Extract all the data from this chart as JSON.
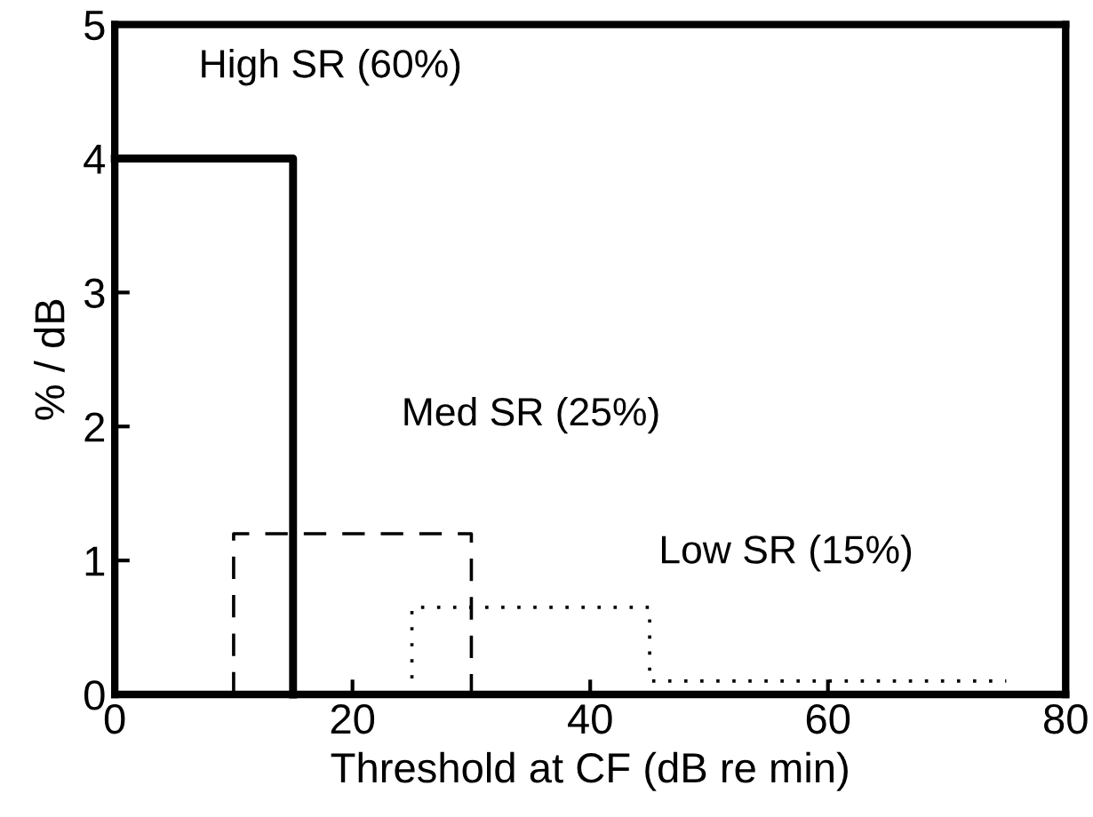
{
  "chart_data": {
    "type": "line",
    "xlabel": "Threshold at CF (dB re min)",
    "ylabel": "% / dB",
    "xlim": [
      0,
      80
    ],
    "xticks": [
      0,
      20,
      40,
      60,
      80
    ],
    "ylim": [
      0,
      5
    ],
    "yticks": [
      0,
      1,
      2,
      3,
      4,
      5
    ],
    "grid": false,
    "legend": false,
    "marker": "none",
    "series": [
      {
        "name": "High SR (60%)",
        "color": "#000000",
        "line_style": "solid",
        "x": [
          0,
          15,
          15
        ],
        "values": [
          4,
          4,
          0
        ]
      },
      {
        "name": "Med SR (25%)",
        "color": "#000000",
        "line_style": "dashed",
        "x": [
          10,
          10,
          30,
          30
        ],
        "values": [
          0,
          1.2,
          1.2,
          0
        ]
      },
      {
        "name": "Low SR (15%)",
        "color": "#000000",
        "line_style": "dotted",
        "x": [
          25,
          25,
          45,
          45,
          75
        ],
        "values": [
          0,
          0.65,
          0.65,
          0.1,
          0.1
        ]
      }
    ]
  }
}
